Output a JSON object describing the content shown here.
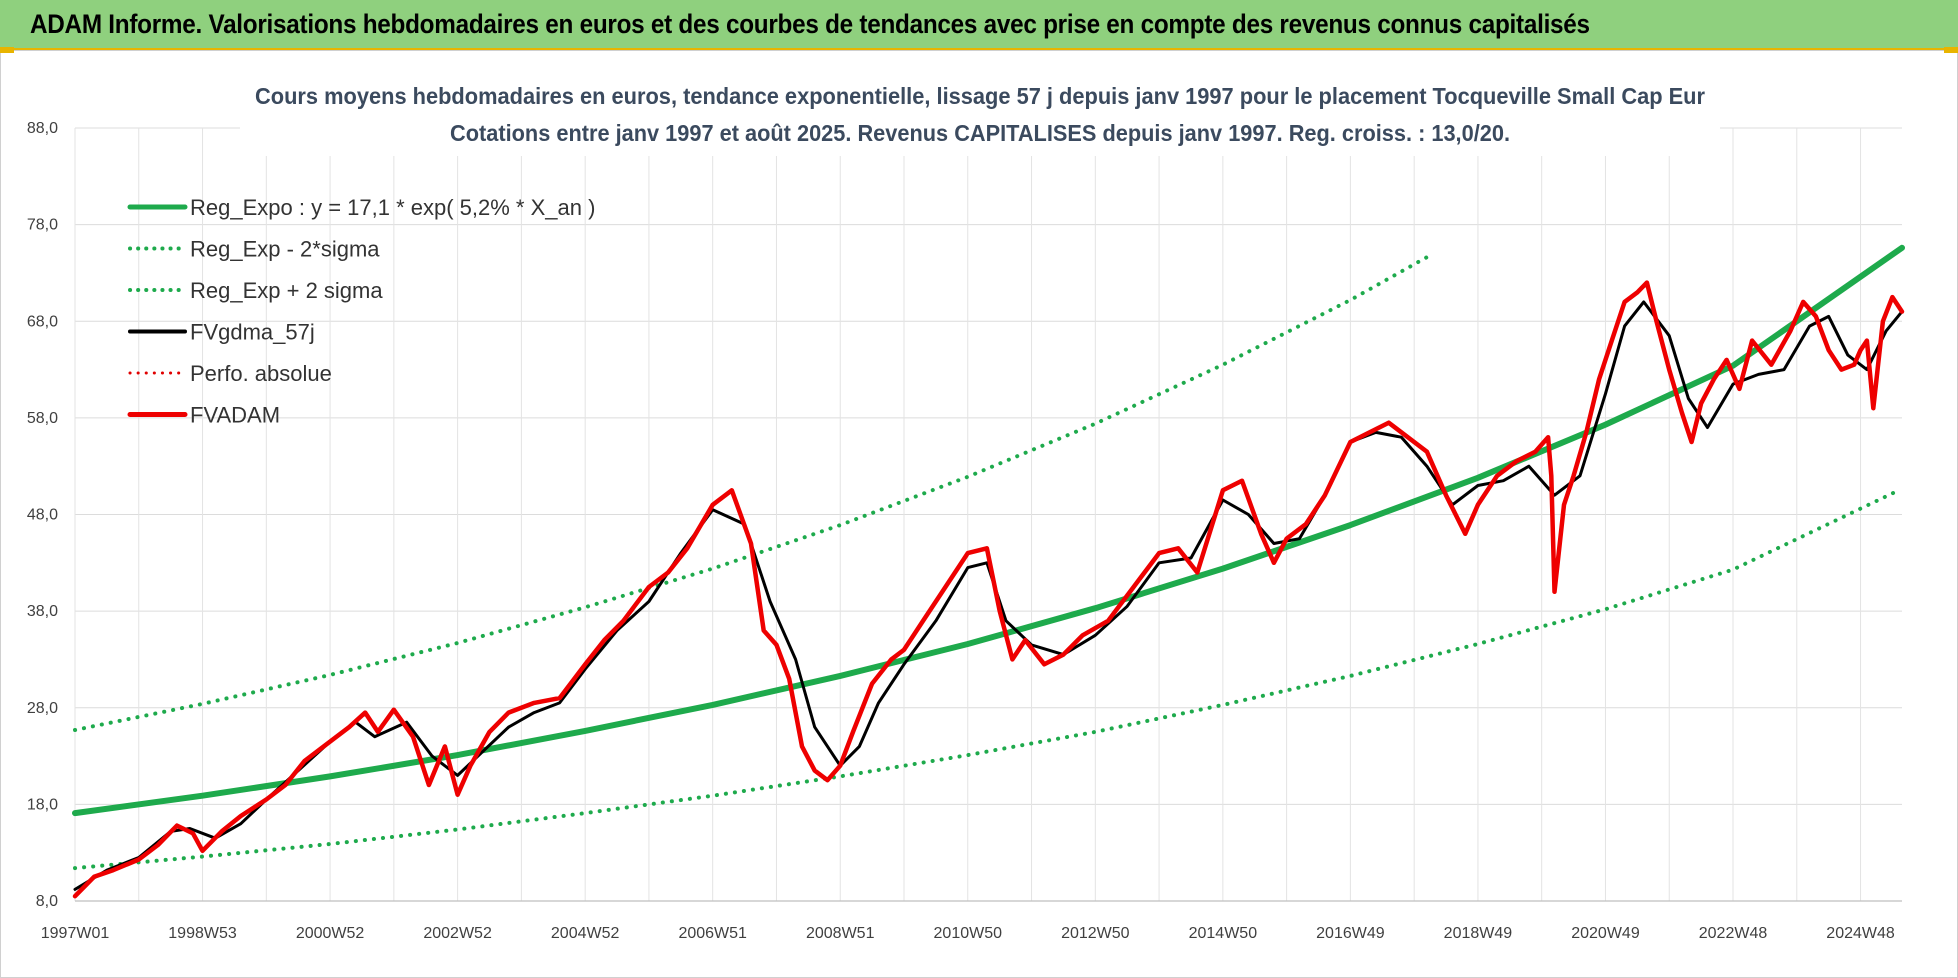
{
  "header": {
    "title": "ADAM Informe. Valorisations hebdomadaires en euros et des courbes de tendances avec prise en compte des revenus connus capitalisés"
  },
  "chart_data": {
    "type": "line",
    "title": "Cours moyens hebdomadaires en euros, tendance exponentielle, lissage 57 j depuis janv 1997  pour le placement Tocqueville Small Cap Eur",
    "subtitle": "Cotations entre janv 1997 et août 2025.  Revenus CAPITALISES depuis janv 1997.  Reg.  croiss. : 13,0/20.",
    "xlabel": "",
    "ylabel": "",
    "ylim": [
      8.0,
      88.0
    ],
    "xlim": [
      1997.0,
      2025.65
    ],
    "y_ticks": [
      "8,0",
      "18,0",
      "28,0",
      "38,0",
      "48,0",
      "58,0",
      "68,0",
      "78,0",
      "88,0"
    ],
    "x_ticks": [
      {
        "label": "1997W01",
        "x": 1997.0
      },
      {
        "label": "1998W53",
        "x": 1999.0
      },
      {
        "label": "2000W52",
        "x": 2001.0
      },
      {
        "label": "2002W52",
        "x": 2003.0
      },
      {
        "label": "2004W52",
        "x": 2005.0
      },
      {
        "label": "2006W51",
        "x": 2007.0
      },
      {
        "label": "2008W51",
        "x": 2009.0
      },
      {
        "label": "2010W50",
        "x": 2011.0
      },
      {
        "label": "2012W50",
        "x": 2013.0
      },
      {
        "label": "2014W50",
        "x": 2015.0
      },
      {
        "label": "2016W49",
        "x": 2017.0
      },
      {
        "label": "2018W49",
        "x": 2019.0
      },
      {
        "label": "2020W49",
        "x": 2021.0
      },
      {
        "label": "2022W48",
        "x": 2023.0
      },
      {
        "label": "2024W48",
        "x": 2025.0
      }
    ],
    "grid": true,
    "legend_position": "top-left",
    "series": [
      {
        "name": "Reg_Expo : y = 17,1 * exp( 5,2% *  X_an )",
        "color": "#1eaa4c",
        "style": "solid",
        "x": [
          1997.0,
          1999.0,
          2001.0,
          2003.0,
          2005.0,
          2007.0,
          2009.0,
          2011.0,
          2013.0,
          2015.0,
          2017.0,
          2019.0,
          2021.0,
          2023.0,
          2025.65
        ],
        "y": [
          17.1,
          18.9,
          20.9,
          23.1,
          25.6,
          28.3,
          31.3,
          34.6,
          38.3,
          42.4,
          46.9,
          51.8,
          57.3,
          63.4,
          75.6
        ]
      },
      {
        "name": "Reg_Exp - 2*sigma",
        "color": "#1eaa4c",
        "style": "dotted",
        "x": [
          1997.0,
          1999.0,
          2001.0,
          2003.0,
          2005.0,
          2007.0,
          2009.0,
          2011.0,
          2013.0,
          2015.0,
          2017.0,
          2019.0,
          2021.0,
          2023.0,
          2025.6
        ],
        "y": [
          11.4,
          12.6,
          13.9,
          15.4,
          17.1,
          18.9,
          20.9,
          23.1,
          25.5,
          28.3,
          31.3,
          34.6,
          38.2,
          42.3,
          50.5
        ]
      },
      {
        "name": "Reg_Exp + 2 sigma",
        "color": "#1eaa4c",
        "style": "dotted",
        "x": [
          1997.0,
          1999.0,
          2001.0,
          2003.0,
          2005.0,
          2007.0,
          2009.0,
          2011.0,
          2013.0,
          2015.0,
          2017.0,
          2018.3
        ],
        "y": [
          25.7,
          28.4,
          31.4,
          34.7,
          38.4,
          42.4,
          46.9,
          51.9,
          57.4,
          63.5,
          70.2,
          75.0
        ]
      },
      {
        "name": "FVgdma_57j",
        "color": "#000000",
        "style": "solid",
        "x": [
          1997.0,
          1997.5,
          1998.0,
          1998.5,
          1998.8,
          1999.2,
          1999.6,
          2000.0,
          2000.5,
          2001.0,
          2001.4,
          2001.7,
          2002.2,
          2002.6,
          2003.0,
          2003.4,
          2003.8,
          2004.2,
          2004.6,
          2005.0,
          2005.5,
          2006.0,
          2006.5,
          2007.0,
          2007.5,
          2007.9,
          2008.3,
          2008.6,
          2009.0,
          2009.3,
          2009.6,
          2010.0,
          2010.5,
          2011.0,
          2011.3,
          2011.6,
          2012.0,
          2012.5,
          2013.0,
          2013.5,
          2014.0,
          2014.5,
          2015.0,
          2015.4,
          2015.8,
          2016.2,
          2016.6,
          2017.0,
          2017.4,
          2017.8,
          2018.2,
          2018.6,
          2019.0,
          2019.4,
          2019.8,
          2020.2,
          2020.6,
          2021.0,
          2021.3,
          2021.6,
          2022.0,
          2022.3,
          2022.6,
          2023.0,
          2023.4,
          2023.8,
          2024.2,
          2024.5,
          2024.8,
          2025.1,
          2025.4,
          2025.65
        ],
        "y": [
          9.2,
          11.2,
          12.5,
          15.2,
          15.5,
          14.5,
          16.0,
          18.5,
          21.5,
          24.5,
          26.5,
          25.0,
          26.5,
          23.0,
          21.0,
          23.5,
          26.0,
          27.5,
          28.5,
          32.0,
          36.0,
          39.0,
          44.0,
          48.5,
          47.0,
          39.0,
          33.0,
          26.0,
          22.0,
          24.0,
          28.5,
          32.5,
          37.0,
          42.5,
          43.0,
          37.0,
          34.5,
          33.5,
          35.5,
          38.5,
          43.0,
          43.5,
          49.5,
          48.0,
          45.0,
          45.5,
          50.0,
          55.5,
          56.5,
          56.0,
          53.0,
          49.0,
          51.0,
          51.5,
          53.0,
          50.0,
          52.0,
          60.5,
          67.5,
          70.0,
          66.5,
          60.0,
          57.0,
          61.5,
          62.5,
          63.0,
          67.5,
          68.5,
          64.5,
          63.0,
          67.0,
          69.0
        ]
      },
      {
        "name": "Perfo. absolue",
        "color": "#e00000",
        "style": "dotted",
        "x": [],
        "y": []
      },
      {
        "name": "FVADAM",
        "color": "#ee0000",
        "style": "solid",
        "x": [
          1997.0,
          1997.3,
          1997.6,
          1998.0,
          1998.3,
          1998.6,
          1998.85,
          1999.0,
          1999.3,
          1999.6,
          2000.0,
          2000.3,
          2000.6,
          2001.0,
          2001.3,
          2001.55,
          2001.75,
          2002.0,
          2002.3,
          2002.55,
          2002.8,
          2003.0,
          2003.2,
          2003.5,
          2003.8,
          2004.2,
          2004.6,
          2005.0,
          2005.3,
          2005.6,
          2006.0,
          2006.3,
          2006.6,
          2007.0,
          2007.3,
          2007.6,
          2007.8,
          2008.0,
          2008.2,
          2008.4,
          2008.6,
          2008.8,
          2009.0,
          2009.2,
          2009.5,
          2009.8,
          2010.0,
          2010.3,
          2010.6,
          2011.0,
          2011.3,
          2011.5,
          2011.7,
          2011.9,
          2012.2,
          2012.5,
          2012.8,
          2013.2,
          2013.6,
          2014.0,
          2014.3,
          2014.6,
          2015.0,
          2015.3,
          2015.6,
          2015.8,
          2016.0,
          2016.3,
          2016.6,
          2017.0,
          2017.3,
          2017.6,
          2017.9,
          2018.2,
          2018.5,
          2018.8,
          2019.0,
          2019.3,
          2019.6,
          2019.9,
          2020.1,
          2020.15,
          2020.2,
          2020.35,
          2020.5,
          2020.7,
          2020.9,
          2021.1,
          2021.3,
          2021.5,
          2021.65,
          2021.8,
          2022.0,
          2022.2,
          2022.35,
          2022.5,
          2022.7,
          2022.9,
          2023.1,
          2023.3,
          2023.6,
          2023.9,
          2024.1,
          2024.3,
          2024.5,
          2024.7,
          2024.9,
          2025.0,
          2025.1,
          2025.2,
          2025.35,
          2025.5,
          2025.65
        ],
        "y": [
          8.5,
          10.5,
          11.2,
          12.3,
          13.8,
          15.8,
          15.0,
          13.2,
          15.2,
          16.8,
          18.5,
          20.0,
          22.5,
          24.5,
          26.0,
          27.5,
          25.5,
          27.8,
          25.0,
          20.0,
          24.0,
          19.0,
          22.0,
          25.5,
          27.5,
          28.5,
          29.0,
          32.5,
          35.0,
          37.0,
          40.5,
          42.0,
          44.5,
          49.0,
          50.5,
          45.0,
          36.0,
          34.5,
          31.0,
          24.0,
          21.5,
          20.5,
          22.0,
          25.5,
          30.5,
          33.0,
          34.0,
          37.0,
          40.0,
          44.0,
          44.5,
          38.0,
          33.0,
          35.0,
          32.5,
          33.5,
          35.5,
          37.0,
          40.5,
          44.0,
          44.5,
          42.0,
          50.5,
          51.5,
          46.0,
          43.0,
          45.5,
          47.0,
          50.0,
          55.5,
          56.5,
          57.5,
          56.0,
          54.5,
          50.0,
          46.0,
          49.0,
          52.0,
          53.5,
          54.5,
          56.0,
          52.0,
          40.0,
          49.0,
          52.0,
          56.5,
          62.0,
          66.0,
          70.0,
          71.0,
          72.0,
          68.0,
          63.0,
          58.5,
          55.5,
          59.5,
          62.0,
          64.0,
          61.0,
          66.0,
          63.5,
          67.0,
          70.0,
          68.5,
          65.0,
          63.0,
          63.5,
          65.0,
          66.0,
          59.0,
          68.0,
          70.5,
          69.0
        ]
      }
    ]
  }
}
